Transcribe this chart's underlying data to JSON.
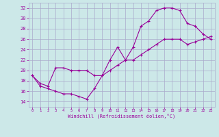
{
  "xlabel": "Windchill (Refroidissement éolien,°C)",
  "background_color": "#cce8e8",
  "line_color": "#990099",
  "grid_color": "#aaaacc",
  "xlim": [
    -0.5,
    23.5
  ],
  "ylim": [
    13,
    33
  ],
  "xticks": [
    0,
    1,
    2,
    3,
    4,
    5,
    6,
    7,
    8,
    9,
    10,
    11,
    12,
    13,
    14,
    15,
    16,
    17,
    18,
    19,
    20,
    21,
    22,
    23
  ],
  "yticks": [
    14,
    16,
    18,
    20,
    22,
    24,
    26,
    28,
    30,
    32
  ],
  "line1_x": [
    0,
    1,
    2,
    3,
    4,
    5,
    6,
    7,
    8,
    9,
    10,
    11,
    12,
    13,
    14,
    15,
    16,
    17,
    18,
    19,
    20,
    21,
    22,
    23
  ],
  "line1_y": [
    19,
    17,
    16.5,
    16,
    15.5,
    15.5,
    15,
    14.5,
    16.5,
    19,
    22,
    24.5,
    22,
    24.5,
    28.5,
    29.5,
    31.5,
    32,
    32,
    31.5,
    29,
    28.5,
    27,
    26
  ],
  "line2_x": [
    0,
    1,
    2,
    3,
    4,
    5,
    6,
    7,
    8,
    9,
    10,
    11,
    12,
    13,
    14,
    15,
    16,
    17,
    18,
    19,
    20,
    21,
    22,
    23
  ],
  "line2_y": [
    19,
    17.5,
    17,
    20.5,
    20.5,
    20,
    20,
    20,
    19,
    19,
    20,
    21,
    22,
    22,
    23,
    24,
    25,
    26,
    26,
    26,
    25,
    25.5,
    26,
    26.5
  ]
}
